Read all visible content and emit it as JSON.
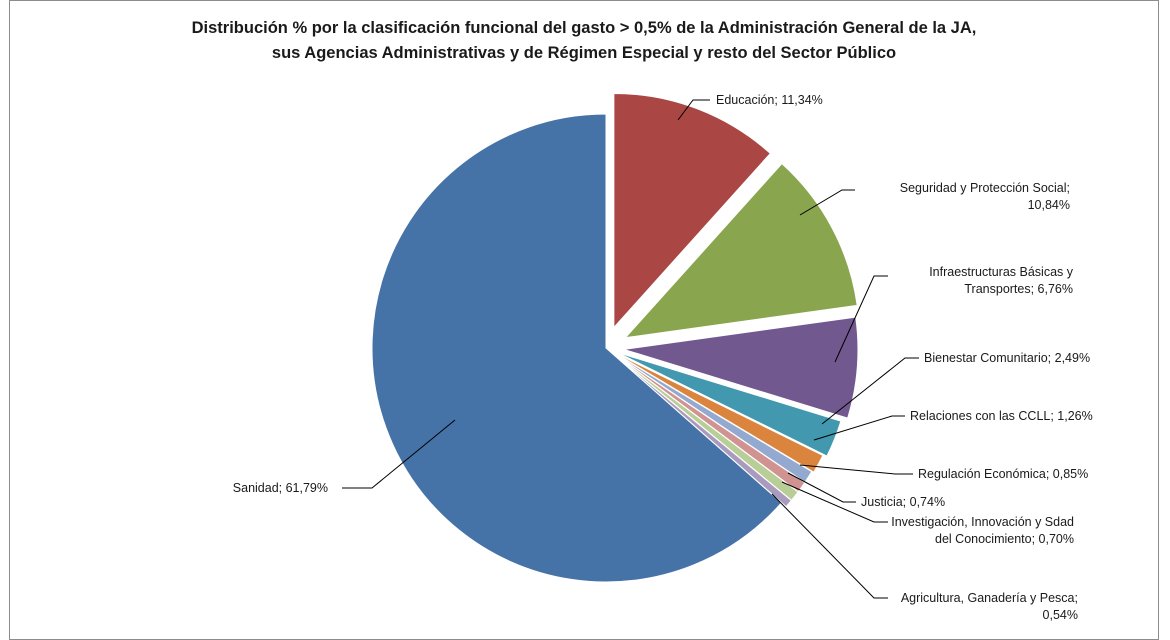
{
  "chart_data": {
    "type": "pie",
    "title_lines": [
      "Distribución %  por la clasificación funcional del gasto > 0,5%  de la Administración General de la JA,",
      "sus Agencias Administrativas y de Régimen Especial y resto del Sector Público"
    ],
    "slices": [
      {
        "label": "Sanidad; 61,79%",
        "name": "Sanidad",
        "value": 61.79,
        "color": "#4572a7"
      },
      {
        "label": "Educación; 11,34%",
        "name": "Educación",
        "value": 11.34,
        "color": "#aa4643"
      },
      {
        "label": "Seguridad y Protección Social; 10,84%",
        "name": "Seguridad y Protección Social",
        "value": 10.84,
        "color": "#89a54e"
      },
      {
        "label": "Infraestructuras Básicas y Transportes; 6,76%",
        "name": "Infraestructuras Básicas y Transportes",
        "value": 6.76,
        "color": "#71588f"
      },
      {
        "label": "Bienestar Comunitario; 2,49%",
        "name": "Bienestar Comunitario",
        "value": 2.49,
        "color": "#4198af"
      },
      {
        "label": "Relaciones con las CCLL; 1,26%",
        "name": "Relaciones con las CCLL",
        "value": 1.26,
        "color": "#db843d"
      },
      {
        "label": "Regulación Económica; 0,85%",
        "name": "Regulación Económica",
        "value": 0.85,
        "color": "#93a9cf"
      },
      {
        "label": "Justicia; 0,74%",
        "name": "Justicia",
        "value": 0.74,
        "color": "#d19392"
      },
      {
        "label": "Investigación, Innovación y Sdad del Conocimiento; 0,70%",
        "name": "Investigación, Innovación y Sdad del Conocimiento",
        "value": 0.7,
        "color": "#b9cd96"
      },
      {
        "label": "Agricultura, Ganadería y Pesca; 0,54%",
        "name": "Agricultura, Ganadería y Pesca",
        "value": 0.54,
        "color": "#a99bbd"
      }
    ],
    "legend": "none"
  }
}
